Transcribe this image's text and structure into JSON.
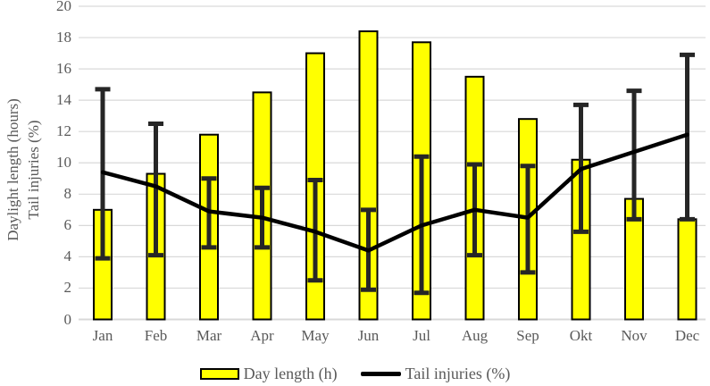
{
  "chart_data": {
    "type": "bar",
    "categories": [
      "Jan",
      "Feb",
      "Mar",
      "Apr",
      "May",
      "Jun",
      "Jul",
      "Aug",
      "Sep",
      "Okt",
      "Nov",
      "Dec"
    ],
    "series": [
      {
        "name": "Day length (h)",
        "type": "bar",
        "color": "#FFFF00",
        "border_color": "#000000",
        "values": [
          7.0,
          9.3,
          11.8,
          14.5,
          17.0,
          18.4,
          17.7,
          15.5,
          12.8,
          10.2,
          7.7,
          6.4
        ]
      },
      {
        "name": "Tail injuries (%)",
        "type": "line",
        "color": "#000000",
        "values": [
          9.4,
          8.5,
          6.9,
          6.5,
          5.6,
          4.4,
          6.0,
          7.0,
          6.5,
          9.6,
          10.7,
          11.8
        ],
        "error_low": [
          3.9,
          4.1,
          4.6,
          4.6,
          2.5,
          1.9,
          1.7,
          4.1,
          3.0,
          5.6,
          6.4,
          6.4
        ],
        "error_high": [
          14.7,
          12.5,
          9.0,
          8.4,
          8.9,
          7.0,
          10.4,
          9.9,
          9.8,
          13.7,
          14.6,
          16.9
        ],
        "error_color": "#262626"
      }
    ],
    "title": "",
    "xlabel": "",
    "ylabel_line1": "Daylight length (hours)",
    "ylabel_line2": "Tail injuries (%)",
    "ylim": [
      0,
      20
    ],
    "ytick_step": 2,
    "grid": true,
    "gridline_color": "#D9D9D9",
    "text_color": "#595959",
    "legend_position": "bottom"
  },
  "legend": {
    "day_length_label": "Day length (h)",
    "tail_injuries_label": "Tail injuries (%)"
  }
}
